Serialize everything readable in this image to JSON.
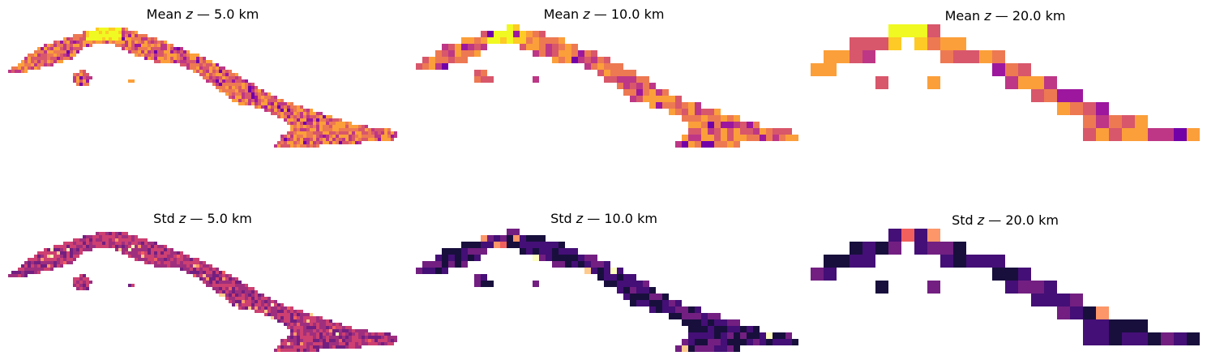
{
  "chart_data": [
    {
      "type": "heatmap",
      "title": "Mean z — 5.0 km",
      "title_prefix": "Mean",
      "title_var": "z",
      "title_suffix": "— 5.0 km",
      "statistic": "mean",
      "resolution_km": 5.0,
      "colormap": "plasma",
      "axis": "off"
    },
    {
      "type": "heatmap",
      "title": "Mean z — 10.0 km",
      "title_prefix": "Mean",
      "title_var": "z",
      "title_suffix": "— 10.0 km",
      "statistic": "mean",
      "resolution_km": 10.0,
      "colormap": "plasma",
      "axis": "off"
    },
    {
      "type": "heatmap",
      "title": "Mean z — 20.0 km",
      "title_prefix": "Mean",
      "title_var": "z",
      "title_suffix": "— 20.0 km",
      "statistic": "mean",
      "resolution_km": 20.0,
      "colormap": "plasma",
      "axis": "off"
    },
    {
      "type": "heatmap",
      "title": "Std z — 5.0 km",
      "title_prefix": "Std",
      "title_var": "z",
      "title_suffix": "— 5.0 km",
      "statistic": "std",
      "resolution_km": 5.0,
      "colormap": "magma",
      "axis": "off"
    },
    {
      "type": "heatmap",
      "title": "Std z — 10.0 km",
      "title_prefix": "Std",
      "title_var": "z",
      "title_suffix": "— 10.0 km",
      "statistic": "std",
      "resolution_km": 10.0,
      "colormap": "magma",
      "axis": "off"
    },
    {
      "type": "heatmap",
      "title": "Std z — 20.0 km",
      "title_prefix": "Std",
      "title_var": "z",
      "title_suffix": "— 20.0 km",
      "statistic": "std",
      "resolution_km": 20.0,
      "colormap": "magma",
      "axis": "off"
    }
  ]
}
